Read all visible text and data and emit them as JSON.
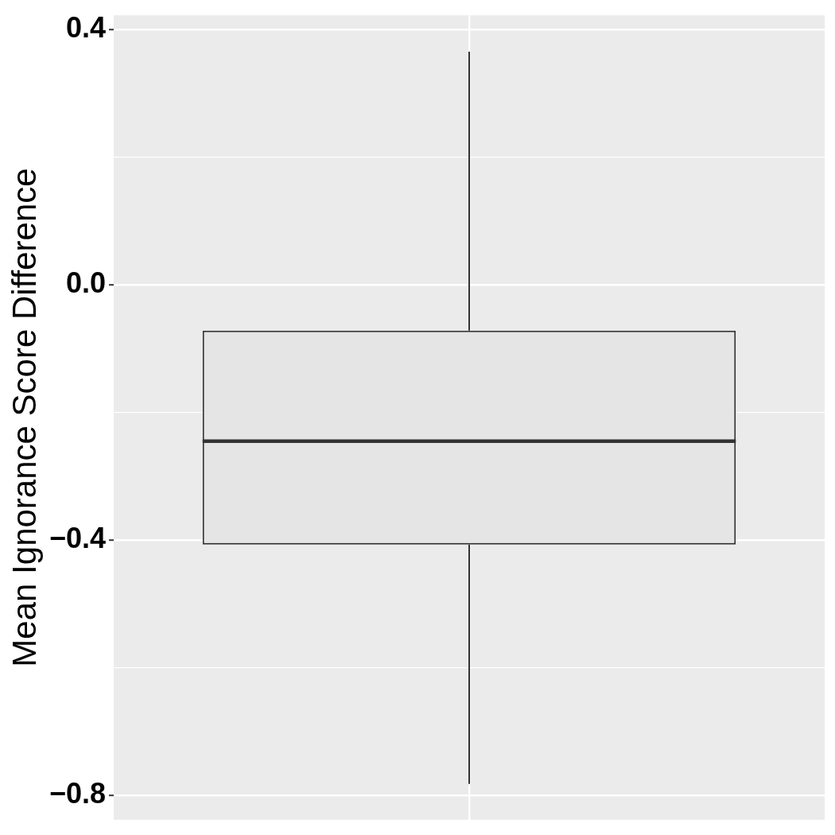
{
  "chart_data": {
    "type": "box",
    "ylabel": "Mean Ignorance Score Difference",
    "categories": [
      null
    ],
    "color": "#333333",
    "boxes": [
      {
        "low": -0.782,
        "q1": -0.407,
        "median": -0.245,
        "q3": -0.072,
        "high": 0.365
      }
    ],
    "ylim": [
      -0.838,
      0.422
    ],
    "yticks": [
      {
        "value": -0.8,
        "label": "−0.8"
      },
      {
        "value": -0.6,
        "label": null
      },
      {
        "value": -0.4,
        "label": "−0.4"
      },
      {
        "value": -0.2,
        "label": null
      },
      {
        "value": 0,
        "label": "0.0"
      },
      {
        "value": 0.2,
        "label": null
      },
      {
        "value": 0.4,
        "label": "0.4"
      }
    ],
    "grid": true,
    "tick_labels": "y"
  }
}
